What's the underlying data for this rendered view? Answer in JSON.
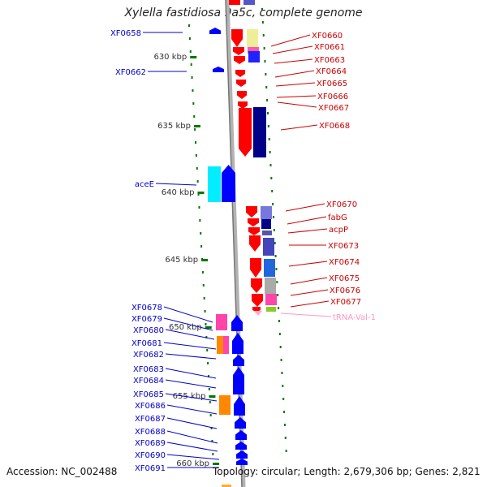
{
  "title": "Xylella fastidiosa 9a5c, complete genome",
  "accession": "Accession: NC_002488",
  "topology": "Topology: circular; Length: 2,679,306 bp; Genes: 2,821",
  "colors": {
    "forward_feature": "#ff0000",
    "reverse_feature": "#0000ff",
    "left_label": "#0000cc",
    "right_label": "#cc0000",
    "trna_label": "#ff99bb",
    "tick": "#007700",
    "backbone": "#999999"
  },
  "scale_marks": [
    "630 kbp",
    "635 kbp",
    "640 kbp",
    "645 kbp",
    "650 kbp",
    "655 kbp",
    "660 kbp"
  ],
  "left_labels": [
    "XF0658",
    "XF0662",
    "aceE",
    "XF0678",
    "XF0679",
    "XF0680",
    "XF0681",
    "XF0682",
    "XF0683",
    "XF0684",
    "XF0685",
    "XF0686",
    "XF0687",
    "XF0688",
    "XF0689",
    "XF0690",
    "XF0691"
  ],
  "right_labels": [
    "XF0660",
    "XF0661",
    "XF0663",
    "XF0664",
    "XF0665",
    "XF0666",
    "XF0667",
    "XF0668",
    "XF0670",
    "fabG",
    "acpP",
    "XF0673",
    "XF0674",
    "XF0675",
    "XF0676",
    "XF0677",
    "tRNA-Val-1"
  ]
}
